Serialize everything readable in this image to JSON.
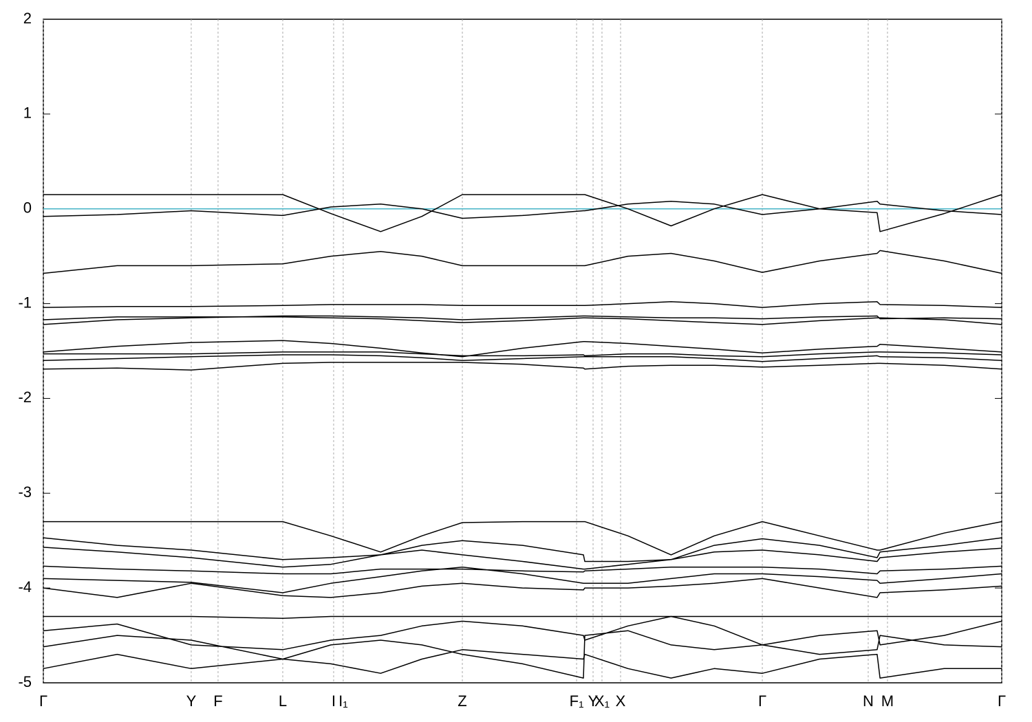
{
  "chart_data": {
    "type": "line",
    "xlim": [
      0,
      1
    ],
    "ylim": [
      -5,
      2
    ],
    "yticks": [
      -5,
      -4,
      -3,
      -2,
      -1,
      0,
      1,
      2
    ],
    "xticks": [
      {
        "value": 0,
        "label": "Γ"
      },
      {
        "value": 0.1543,
        "label": "Y"
      },
      {
        "value": 0.1823,
        "label": "F"
      },
      {
        "value": 0.2498,
        "label": "L"
      },
      {
        "value": 0.3029,
        "label": "I"
      },
      {
        "value": 0.3129,
        "label": "I₁"
      },
      {
        "value": 0.4372,
        "label": "Z"
      },
      {
        "value": 0.5564,
        "label": "F₁"
      },
      {
        "value": 0.5736,
        "label": "Y"
      },
      {
        "value": 0.5829,
        "label": "X₁"
      },
      {
        "value": 0.6023,
        "label": "X"
      },
      {
        "value": 0.7502,
        "label": "Γ"
      },
      {
        "value": 0.8607,
        "label": "N"
      },
      {
        "value": 0.8808,
        "label": "M"
      },
      {
        "value": 1,
        "label": "Γ"
      }
    ],
    "grid": true,
    "color": "#000000",
    "fermi_level": 0,
    "fermi_color": "#4bb6c8",
    "x": [
      0,
      0.077,
      0.1543,
      0.2498,
      0.3,
      0.352,
      0.395,
      0.4372,
      0.5,
      0.5635,
      0.565,
      0.61,
      0.655,
      0.7,
      0.7502,
      0.81,
      0.87,
      0.873,
      0.94,
      1
    ],
    "series": [
      {
        "values": [
          0.15,
          0.15,
          0.15,
          0.15,
          -0.05,
          -0.24,
          -0.08,
          0.15,
          0.15,
          0.15,
          0.15,
          0.0,
          -0.18,
          0.0,
          0.15,
          0.0,
          -0.04,
          -0.24,
          -0.05,
          0.15
        ]
      },
      {
        "values": [
          -0.08,
          -0.06,
          -0.02,
          -0.07,
          0.02,
          0.05,
          0.0,
          -0.1,
          -0.07,
          -0.02,
          -0.02,
          0.05,
          0.08,
          0.05,
          -0.06,
          0.0,
          0.08,
          0.05,
          -0.02,
          -0.06
        ]
      },
      {
        "values": [
          -0.68,
          -0.6,
          -0.6,
          -0.58,
          -0.5,
          -0.45,
          -0.5,
          -0.6,
          -0.6,
          -0.6,
          -0.6,
          -0.5,
          -0.47,
          -0.55,
          -0.67,
          -0.55,
          -0.47,
          -0.44,
          -0.55,
          -0.68
        ]
      },
      {
        "values": [
          -1.04,
          -1.03,
          -1.03,
          -1.02,
          -1.01,
          -1.01,
          -1.01,
          -1.02,
          -1.02,
          -1.02,
          -1.02,
          -1.0,
          -0.98,
          -1.0,
          -1.04,
          -1.0,
          -0.98,
          -1.01,
          -1.02,
          -1.04
        ]
      },
      {
        "values": [
          -1.17,
          -1.14,
          -1.14,
          -1.14,
          -1.15,
          -1.16,
          -1.18,
          -1.2,
          -1.18,
          -1.15,
          -1.15,
          -1.16,
          -1.18,
          -1.2,
          -1.22,
          -1.18,
          -1.15,
          -1.15,
          -1.17,
          -1.22
        ]
      },
      {
        "values": [
          -1.22,
          -1.17,
          -1.15,
          -1.13,
          -1.13,
          -1.14,
          -1.15,
          -1.17,
          -1.15,
          -1.13,
          -1.13,
          -1.14,
          -1.15,
          -1.15,
          -1.16,
          -1.14,
          -1.13,
          -1.16,
          -1.15,
          -1.16
        ]
      },
      {
        "values": [
          -1.51,
          -1.45,
          -1.41,
          -1.39,
          -1.42,
          -1.47,
          -1.52,
          -1.56,
          -1.47,
          -1.4,
          -1.4,
          -1.42,
          -1.45,
          -1.48,
          -1.52,
          -1.48,
          -1.45,
          -1.43,
          -1.47,
          -1.51
        ]
      },
      {
        "values": [
          -1.53,
          -1.53,
          -1.53,
          -1.51,
          -1.51,
          -1.51,
          -1.53,
          -1.55,
          -1.55,
          -1.54,
          -1.55,
          -1.53,
          -1.53,
          -1.55,
          -1.56,
          -1.53,
          -1.51,
          -1.51,
          -1.52,
          -1.54
        ]
      },
      {
        "values": [
          -1.6,
          -1.58,
          -1.56,
          -1.54,
          -1.54,
          -1.55,
          -1.57,
          -1.6,
          -1.58,
          -1.56,
          -1.56,
          -1.56,
          -1.56,
          -1.58,
          -1.61,
          -1.58,
          -1.55,
          -1.56,
          -1.57,
          -1.6
        ]
      },
      {
        "values": [
          -1.69,
          -1.68,
          -1.7,
          -1.63,
          -1.62,
          -1.62,
          -1.62,
          -1.62,
          -1.64,
          -1.68,
          -1.69,
          -1.66,
          -1.65,
          -1.65,
          -1.67,
          -1.65,
          -1.63,
          -1.63,
          -1.65,
          -1.69
        ]
      },
      {
        "values": [
          -3.3,
          -3.3,
          -3.3,
          -3.3,
          -3.45,
          -3.62,
          -3.45,
          -3.31,
          -3.3,
          -3.3,
          -3.3,
          -3.45,
          -3.65,
          -3.45,
          -3.3,
          -3.45,
          -3.6,
          -3.6,
          -3.42,
          -3.3
        ]
      },
      {
        "values": [
          -3.47,
          -3.55,
          -3.6,
          -3.7,
          -3.68,
          -3.65,
          -3.55,
          -3.5,
          -3.55,
          -3.65,
          -3.72,
          -3.72,
          -3.7,
          -3.55,
          -3.48,
          -3.55,
          -3.68,
          -3.62,
          -3.55,
          -3.47
        ]
      },
      {
        "values": [
          -3.57,
          -3.62,
          -3.68,
          -3.78,
          -3.75,
          -3.65,
          -3.6,
          -3.65,
          -3.72,
          -3.8,
          -3.8,
          -3.75,
          -3.7,
          -3.62,
          -3.6,
          -3.65,
          -3.72,
          -3.68,
          -3.62,
          -3.58
        ]
      },
      {
        "values": [
          -3.77,
          -3.8,
          -3.82,
          -3.85,
          -3.85,
          -3.8,
          -3.8,
          -3.8,
          -3.82,
          -3.83,
          -3.82,
          -3.8,
          -3.78,
          -3.78,
          -3.78,
          -3.8,
          -3.85,
          -3.82,
          -3.8,
          -3.77
        ]
      },
      {
        "values": [
          -3.9,
          -3.92,
          -3.94,
          -4.05,
          -3.95,
          -3.88,
          -3.82,
          -3.78,
          -3.85,
          -3.95,
          -3.95,
          -3.95,
          -3.9,
          -3.85,
          -3.85,
          -3.88,
          -3.92,
          -3.95,
          -3.9,
          -3.85
        ]
      },
      {
        "values": [
          -4.0,
          -4.1,
          -3.95,
          -4.08,
          -4.1,
          -4.05,
          -3.98,
          -3.95,
          -4.0,
          -4.02,
          -4.0,
          -4.0,
          -3.98,
          -3.95,
          -3.9,
          -4.0,
          -4.1,
          -4.05,
          -4.02,
          -3.98
        ]
      },
      {
        "values": [
          -4.3,
          -4.3,
          -4.3,
          -4.32,
          -4.3,
          -4.3,
          -4.3,
          -4.3,
          -4.3,
          -4.3,
          -4.3,
          -4.3,
          -4.3,
          -4.3,
          -4.3,
          -4.3,
          -4.3,
          -4.3,
          -4.3,
          -4.3
        ]
      },
      {
        "values": [
          -4.45,
          -4.38,
          -4.6,
          -4.65,
          -4.55,
          -4.5,
          -4.4,
          -4.35,
          -4.4,
          -4.5,
          -4.55,
          -4.4,
          -4.3,
          -4.4,
          -4.6,
          -4.5,
          -4.45,
          -4.6,
          -4.5,
          -4.35
        ]
      },
      {
        "values": [
          -4.62,
          -4.5,
          -4.55,
          -4.75,
          -4.6,
          -4.55,
          -4.6,
          -4.7,
          -4.8,
          -4.95,
          -4.5,
          -4.45,
          -4.6,
          -4.65,
          -4.6,
          -4.7,
          -4.65,
          -4.5,
          -4.6,
          -4.62
        ]
      },
      {
        "values": [
          -4.85,
          -4.7,
          -4.85,
          -4.75,
          -4.8,
          -4.9,
          -4.75,
          -4.65,
          -4.7,
          -4.75,
          -4.7,
          -4.85,
          -4.95,
          -4.85,
          -4.9,
          -4.75,
          -4.7,
          -4.95,
          -4.85,
          -4.85
        ]
      }
    ]
  }
}
